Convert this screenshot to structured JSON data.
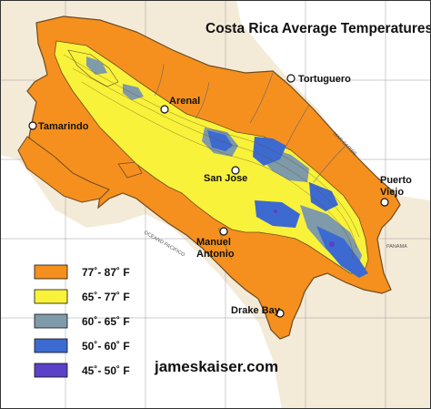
{
  "map": {
    "title": "Costa Rica Average Temperatures",
    "website": "jameskaiser.com",
    "ocean_labels": {
      "pacific": "OCEANO PACIFICO",
      "caribbean": "MAR CARIBE"
    },
    "country_labels": {
      "panama": "PANAMA"
    },
    "places": [
      {
        "id": "tortuguero",
        "name": "Tortuguero"
      },
      {
        "id": "arenal",
        "name": "Arenal"
      },
      {
        "id": "tamarindo",
        "name": "Tamarindo"
      },
      {
        "id": "san-jose",
        "name": "San Jose"
      },
      {
        "id": "puerto-viejo",
        "line1": "Puerto",
        "line2": "Viejo"
      },
      {
        "id": "manuel-antonio",
        "line1": "Manuel",
        "line2": "Antonio"
      },
      {
        "id": "drake-bay",
        "name": "Drake Bay"
      }
    ],
    "legend": [
      {
        "label": "77˚- 87˚ F",
        "color": "#f5901e"
      },
      {
        "label": "65˚- 77˚ F",
        "color": "#f8f23a"
      },
      {
        "label": "60˚- 65˚ F",
        "color": "#7f9aa8"
      },
      {
        "label": "50˚- 60˚ F",
        "color": "#3c6ad0"
      },
      {
        "label": "45˚- 50˚ F",
        "color": "#5b40c8"
      }
    ],
    "colors": {
      "land_outside": "#f4ead8",
      "sea": "#ffffff",
      "hot": "#f5901e",
      "warm": "#f8f23a",
      "mild": "#7f9aa8",
      "cool": "#3c6ad0",
      "cold": "#5b40c8"
    }
  }
}
